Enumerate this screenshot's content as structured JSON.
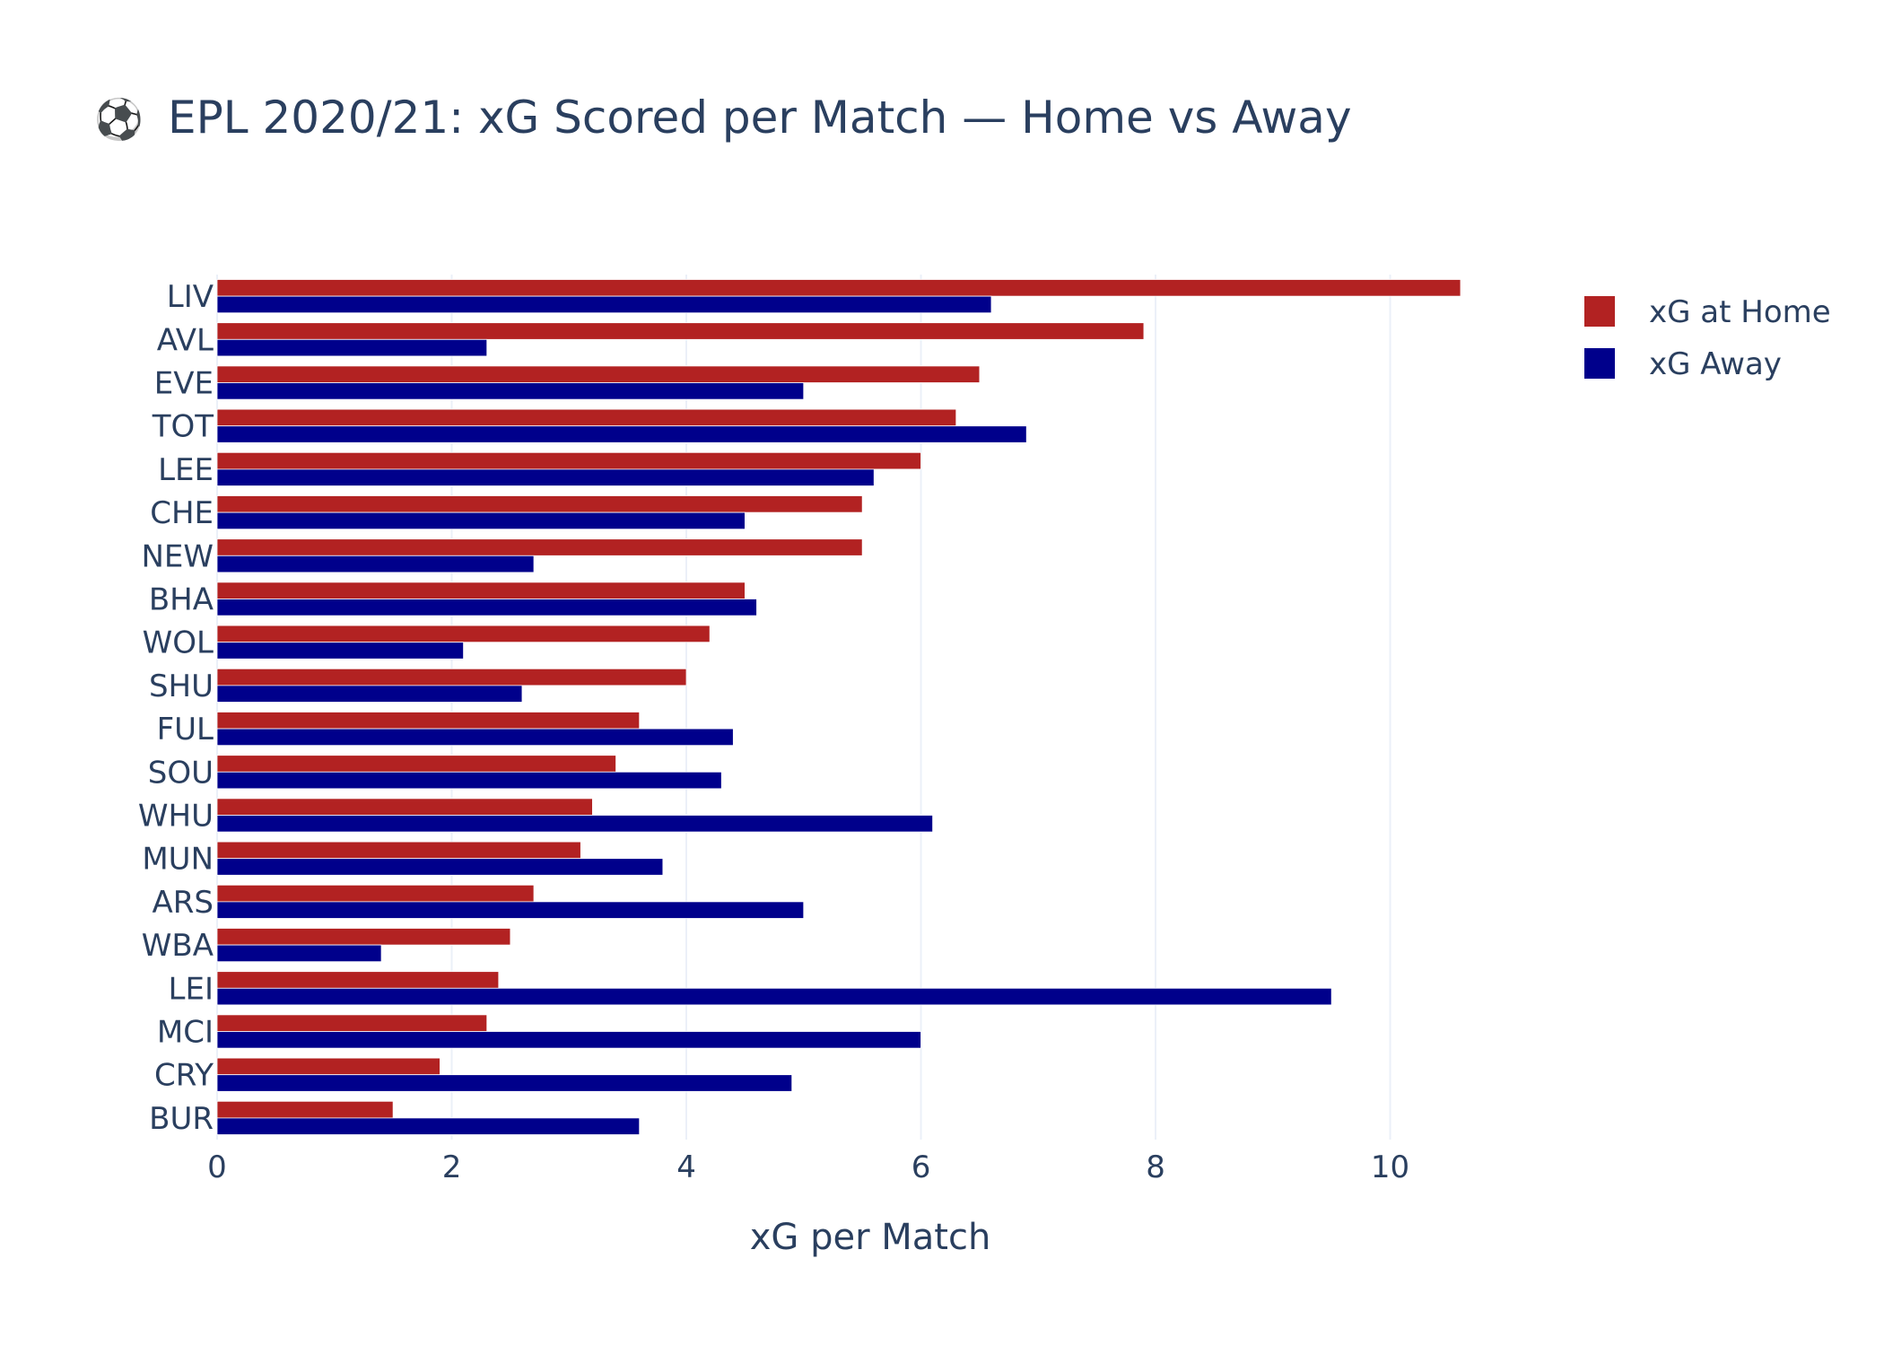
{
  "chart_data": {
    "type": "bar",
    "orientation": "horizontal",
    "title_icon": "⚽",
    "title": "EPL 2020/21: xG Scored per Match — Home vs Away",
    "xlabel": "xG per Match",
    "ylabel": "",
    "xlim": [
      0,
      10.6
    ],
    "xticks": [
      0,
      2,
      4,
      6,
      8,
      10
    ],
    "grid": true,
    "legend_position": "top-right",
    "categories": [
      "LIV",
      "AVL",
      "EVE",
      "TOT",
      "LEE",
      "CHE",
      "NEW",
      "BHA",
      "WOL",
      "SHU",
      "FUL",
      "SOU",
      "WHU",
      "MUN",
      "ARS",
      "WBA",
      "LEI",
      "MCI",
      "CRY",
      "BUR"
    ],
    "series": [
      {
        "name": "xG at Home",
        "color": "#b22222",
        "values": [
          10.6,
          7.9,
          6.5,
          6.3,
          6.0,
          5.5,
          5.5,
          4.5,
          4.2,
          4.0,
          3.6,
          3.4,
          3.2,
          3.1,
          2.7,
          2.5,
          2.4,
          2.3,
          1.9,
          1.5
        ]
      },
      {
        "name": "xG Away",
        "color": "#00008b",
        "values": [
          6.6,
          2.3,
          5.0,
          6.9,
          5.6,
          4.5,
          2.7,
          4.6,
          2.1,
          2.6,
          4.4,
          4.3,
          6.1,
          3.8,
          5.0,
          1.4,
          9.5,
          6.0,
          4.9,
          3.6
        ]
      }
    ]
  }
}
